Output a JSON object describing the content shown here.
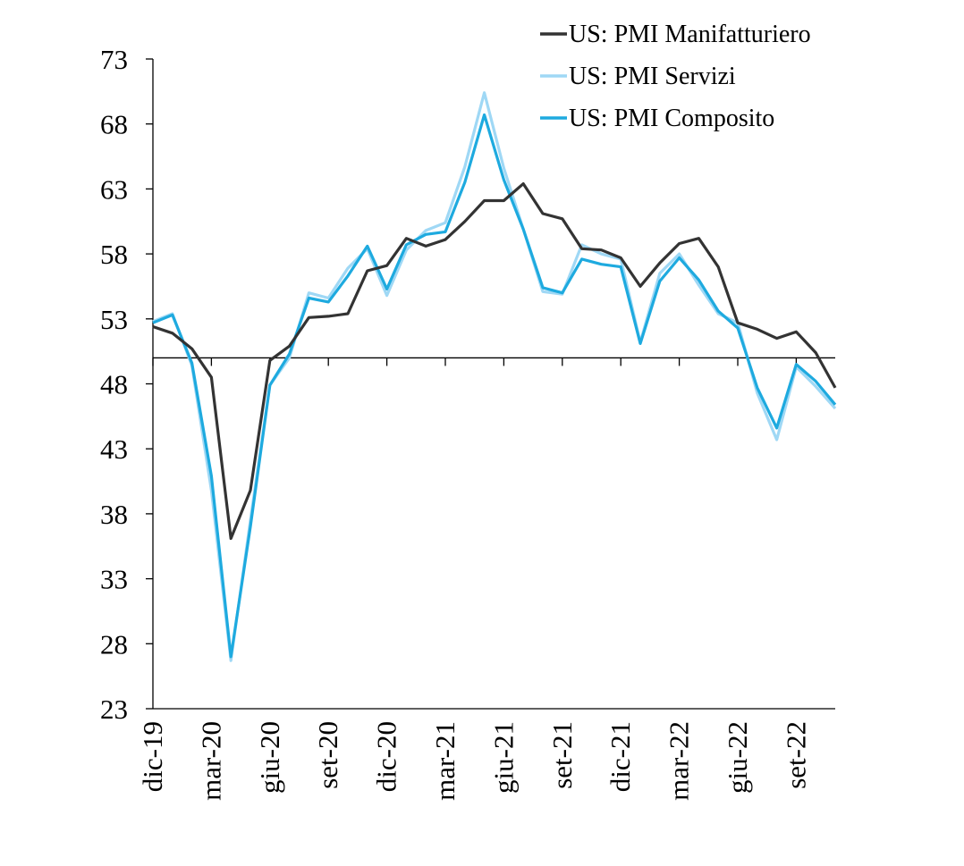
{
  "chart_data": {
    "type": "line",
    "title": "",
    "xlabel": "",
    "ylabel": "",
    "ylim": [
      23,
      73
    ],
    "yticks": [
      23,
      28,
      33,
      38,
      43,
      48,
      53,
      58,
      63,
      68,
      73
    ],
    "reference_line": 50,
    "grid": false,
    "legend_position": "top-right",
    "x": [
      "dic-19",
      "gen-20",
      "feb-20",
      "mar-20",
      "apr-20",
      "mag-20",
      "giu-20",
      "lug-20",
      "ago-20",
      "set-20",
      "ott-20",
      "nov-20",
      "dic-20",
      "gen-21",
      "feb-21",
      "mar-21",
      "apr-21",
      "mag-21",
      "giu-21",
      "lug-21",
      "ago-21",
      "set-21",
      "ott-21",
      "nov-21",
      "dic-21",
      "gen-22",
      "feb-22",
      "mar-22",
      "apr-22",
      "mag-22",
      "giu-22",
      "lug-22",
      "ago-22",
      "set-22",
      "ott-22",
      "nov-22"
    ],
    "xtick_labels": [
      "dic-19",
      "mar-20",
      "giu-20",
      "set-20",
      "dic-20",
      "mar-21",
      "giu-21",
      "set-21",
      "dic-21",
      "mar-22",
      "giu-22",
      "set-22"
    ],
    "xtick_every": 3,
    "series": [
      {
        "name": "US: PMI Manifatturiero",
        "color": "#333333",
        "values": [
          52.4,
          51.9,
          50.7,
          48.5,
          36.1,
          39.8,
          49.8,
          50.9,
          53.1,
          53.2,
          53.4,
          56.7,
          57.1,
          59.2,
          58.6,
          59.1,
          60.5,
          62.1,
          62.1,
          63.4,
          61.1,
          60.7,
          58.4,
          58.3,
          57.7,
          55.5,
          57.3,
          58.8,
          59.2,
          57.0,
          52.7,
          52.2,
          51.5,
          52.0,
          50.4,
          47.7
        ]
      },
      {
        "name": "US: PMI Servizi",
        "color": "#9fd8f5",
        "values": [
          52.8,
          53.4,
          49.4,
          39.8,
          26.7,
          37.5,
          47.9,
          50.0,
          55.0,
          54.6,
          56.9,
          58.4,
          54.8,
          58.3,
          59.8,
          60.4,
          64.7,
          70.4,
          64.6,
          59.9,
          55.1,
          54.9,
          58.7,
          58.0,
          57.6,
          51.2,
          56.5,
          58.0,
          55.6,
          53.4,
          52.7,
          47.3,
          43.7,
          49.3,
          47.8,
          46.1
        ]
      },
      {
        "name": "US: PMI Composito",
        "color": "#1eaadf",
        "values": [
          52.7,
          53.3,
          49.6,
          40.9,
          27.0,
          37.0,
          47.9,
          50.3,
          54.6,
          54.3,
          56.3,
          58.6,
          55.3,
          58.7,
          59.5,
          59.7,
          63.5,
          68.7,
          63.7,
          59.9,
          55.4,
          55.0,
          57.6,
          57.2,
          57.0,
          51.1,
          55.9,
          57.7,
          56.0,
          53.6,
          52.3,
          47.7,
          44.6,
          49.5,
          48.2,
          46.4
        ]
      }
    ]
  }
}
